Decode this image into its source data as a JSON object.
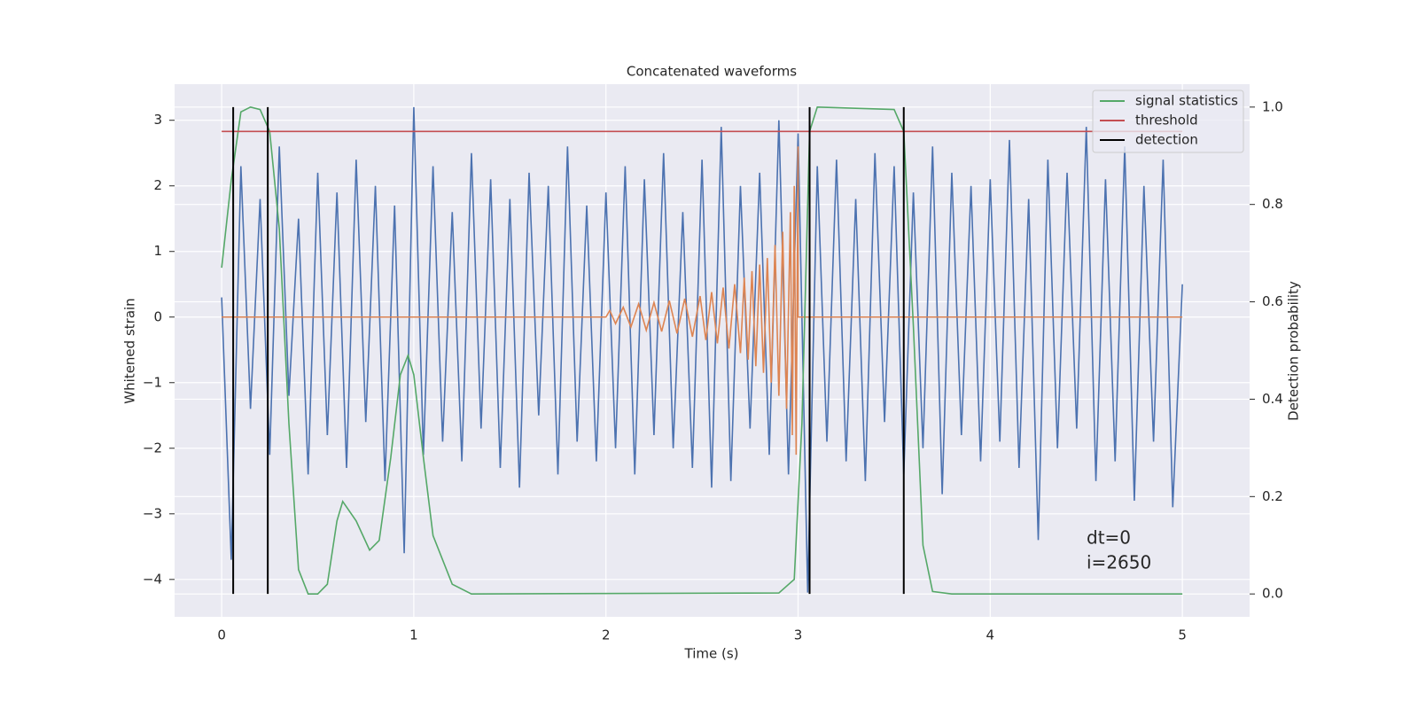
{
  "chart_data": {
    "type": "line",
    "title": "Concatenated waveforms",
    "xlabel": "Time (s)",
    "ylabel": "Whitened strain",
    "y2label": "Detection probability",
    "annotation": [
      "dt=0",
      "i=2650"
    ],
    "xlim": [
      -0.245,
      5.35
    ],
    "ylim": [
      -4.57,
      3.55
    ],
    "y2lim": [
      -0.047,
      1.047
    ],
    "xticks": [
      0,
      1,
      2,
      3,
      4,
      5
    ],
    "yticks": [
      {
        "value": -4,
        "label": "−4"
      },
      {
        "value": -3,
        "label": "−3"
      },
      {
        "value": -2,
        "label": "−2"
      },
      {
        "value": -1,
        "label": "−1"
      },
      0,
      1,
      2,
      3
    ],
    "y2ticks": [
      {
        "value": 0,
        "label": "0.0"
      },
      {
        "value": 0.2,
        "label": "0.2"
      },
      {
        "value": 0.4,
        "label": "0.4"
      },
      {
        "value": 0.6,
        "label": "0.6"
      },
      {
        "value": 0.8,
        "label": "0.8"
      },
      {
        "value": 1,
        "label": "1.0"
      }
    ],
    "grid": true,
    "legend": "upper right",
    "series": [
      {
        "color": "#4c72b0",
        "x": [
          0,
          0.05,
          0.1,
          0.15,
          0.2,
          0.25,
          0.3,
          0.35,
          0.4,
          0.45,
          0.5,
          0.55,
          0.6,
          0.65,
          0.7,
          0.75,
          0.8,
          0.85,
          0.9,
          0.95,
          1,
          1.05,
          1.1,
          1.15,
          1.2,
          1.25,
          1.3,
          1.35,
          1.4,
          1.45,
          1.5,
          1.55,
          1.6,
          1.65,
          1.7,
          1.75,
          1.8,
          1.85,
          1.9,
          1.95,
          2,
          2.05,
          2.1,
          2.15,
          2.2,
          2.25,
          2.3,
          2.35,
          2.4,
          2.45,
          2.5,
          2.55,
          2.6,
          2.65,
          2.7,
          2.75,
          2.8,
          2.85,
          2.9,
          2.95,
          3,
          3.05,
          3.1,
          3.15,
          3.2,
          3.25,
          3.3,
          3.35,
          3.4,
          3.45,
          3.5,
          3.55,
          3.6,
          3.65,
          3.7,
          3.75,
          3.8,
          3.85,
          3.9,
          3.95,
          4,
          4.05,
          4.1,
          4.15,
          4.2,
          4.25,
          4.3,
          4.35,
          4.4,
          4.45,
          4.5,
          4.55,
          4.6,
          4.65,
          4.7,
          4.75,
          4.8,
          4.85,
          4.9,
          4.95,
          5
        ],
        "values": [
          0.3,
          -3.7,
          2.3,
          -1.4,
          1.8,
          -2.1,
          2.6,
          -1.2,
          1.5,
          -2.4,
          2.2,
          -1.8,
          1.9,
          -2.3,
          2.4,
          -1.6,
          2.0,
          -2.5,
          1.7,
          -3.6,
          3.2,
          -2.1,
          2.3,
          -1.9,
          1.6,
          -2.2,
          2.5,
          -1.7,
          2.1,
          -2.3,
          1.8,
          -2.6,
          2.2,
          -1.5,
          2.0,
          -2.4,
          2.6,
          -1.9,
          1.7,
          -2.2,
          1.9,
          -2.0,
          2.3,
          -2.4,
          2.1,
          -1.8,
          2.5,
          -2.0,
          1.6,
          -2.3,
          2.4,
          -2.6,
          2.9,
          -2.5,
          2.0,
          -1.7,
          2.2,
          -2.1,
          3.0,
          -2.4,
          2.8,
          -4.2,
          2.3,
          -1.9,
          2.4,
          -2.2,
          1.8,
          -2.5,
          2.5,
          -1.6,
          2.3,
          -2.4,
          1.9,
          -2.0,
          2.6,
          -2.7,
          2.2,
          -1.8,
          2.0,
          -2.2,
          2.1,
          -1.9,
          2.7,
          -2.3,
          1.8,
          -3.4,
          2.4,
          -2.0,
          2.2,
          -1.7,
          2.9,
          -2.5,
          2.1,
          -2.2,
          2.6,
          -2.8,
          2.0,
          -1.9,
          2.4,
          -2.9,
          0.5
        ]
      },
      {
        "color": "#dd8452",
        "x": [
          0,
          2.0,
          2.02,
          2.05,
          2.09,
          2.13,
          2.17,
          2.21,
          2.25,
          2.29,
          2.33,
          2.37,
          2.41,
          2.45,
          2.49,
          2.52,
          2.55,
          2.58,
          2.61,
          2.64,
          2.67,
          2.7,
          2.72,
          2.74,
          2.76,
          2.78,
          2.8,
          2.82,
          2.84,
          2.86,
          2.88,
          2.9,
          2.92,
          2.94,
          2.96,
          2.97,
          2.98,
          2.99,
          3.0,
          3.0,
          5.0
        ],
        "values": [
          0,
          0,
          0.1,
          -0.1,
          0.15,
          -0.15,
          0.2,
          -0.2,
          0.22,
          -0.22,
          0.25,
          -0.25,
          0.28,
          -0.3,
          0.32,
          -0.35,
          0.38,
          -0.4,
          0.45,
          -0.48,
          0.5,
          -0.55,
          0.6,
          -0.65,
          0.7,
          -0.75,
          0.8,
          -0.85,
          0.9,
          -1.0,
          1.1,
          -1.2,
          1.3,
          -1.4,
          1.6,
          -1.8,
          2.0,
          -2.1,
          2.6,
          0,
          0
        ]
      },
      {
        "name": "signal statistics",
        "color": "#55a868",
        "axis": "y2",
        "x": [
          0,
          0.05,
          0.1,
          0.15,
          0.2,
          0.25,
          0.3,
          0.35,
          0.4,
          0.45,
          0.5,
          0.55,
          0.6,
          0.63,
          0.7,
          0.77,
          0.82,
          0.88,
          0.93,
          0.97,
          1.0,
          1.05,
          1.1,
          1.2,
          1.3,
          2.9,
          2.98,
          3.02,
          3.06,
          3.1,
          3.5,
          3.55,
          3.6,
          3.65,
          3.7,
          3.8,
          5.0
        ],
        "values": [
          0.67,
          0.85,
          0.99,
          1.0,
          0.995,
          0.95,
          0.75,
          0.35,
          0.05,
          0.0,
          0.0,
          0.02,
          0.15,
          0.19,
          0.15,
          0.09,
          0.11,
          0.28,
          0.45,
          0.49,
          0.45,
          0.28,
          0.12,
          0.02,
          0.0,
          0.002,
          0.03,
          0.35,
          0.95,
          1.0,
          0.995,
          0.95,
          0.55,
          0.1,
          0.005,
          0.0,
          0.0
        ]
      },
      {
        "name": "threshold",
        "color": "#c44e52",
        "axis": "y2",
        "x": [
          0,
          5
        ],
        "values": [
          0.95,
          0.95
        ]
      },
      {
        "name": "detection",
        "color": "#000000",
        "axis": "y2",
        "x": [
          0.06,
          0.24,
          3.06,
          3.55
        ]
      }
    ]
  }
}
